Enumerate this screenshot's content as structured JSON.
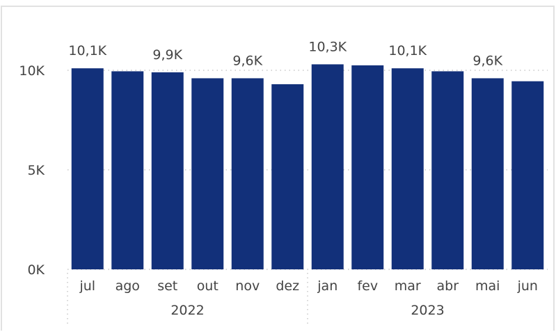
{
  "chart_data": {
    "type": "bar",
    "categories": [
      "jul",
      "ago",
      "set",
      "out",
      "nov",
      "dez",
      "jan",
      "fev",
      "mar",
      "abr",
      "mai",
      "jun"
    ],
    "groups": [
      {
        "label": "2022",
        "categories": [
          "jul",
          "ago",
          "set",
          "out",
          "nov",
          "dez"
        ]
      },
      {
        "label": "2023",
        "categories": [
          "jan",
          "fev",
          "mar",
          "abr",
          "mai",
          "jun"
        ]
      }
    ],
    "values": [
      10100,
      9950,
      9900,
      9600,
      9600,
      9300,
      10300,
      10250,
      10100,
      9950,
      9600,
      9450
    ],
    "data_labels": [
      "10,1K",
      "",
      "9,9K",
      "",
      "9,6K",
      "",
      "10,3K",
      "",
      "10,1K",
      "",
      "9,6K",
      ""
    ],
    "ylim": [
      0,
      11500
    ],
    "yticks": [
      {
        "value": 0,
        "label": "0K"
      },
      {
        "value": 5000,
        "label": "5K"
      },
      {
        "value": 10000,
        "label": "10K"
      }
    ],
    "grid": true,
    "bar_color": "#12307a",
    "text_color": "#444444",
    "grid_color": "#c8c8c8"
  }
}
